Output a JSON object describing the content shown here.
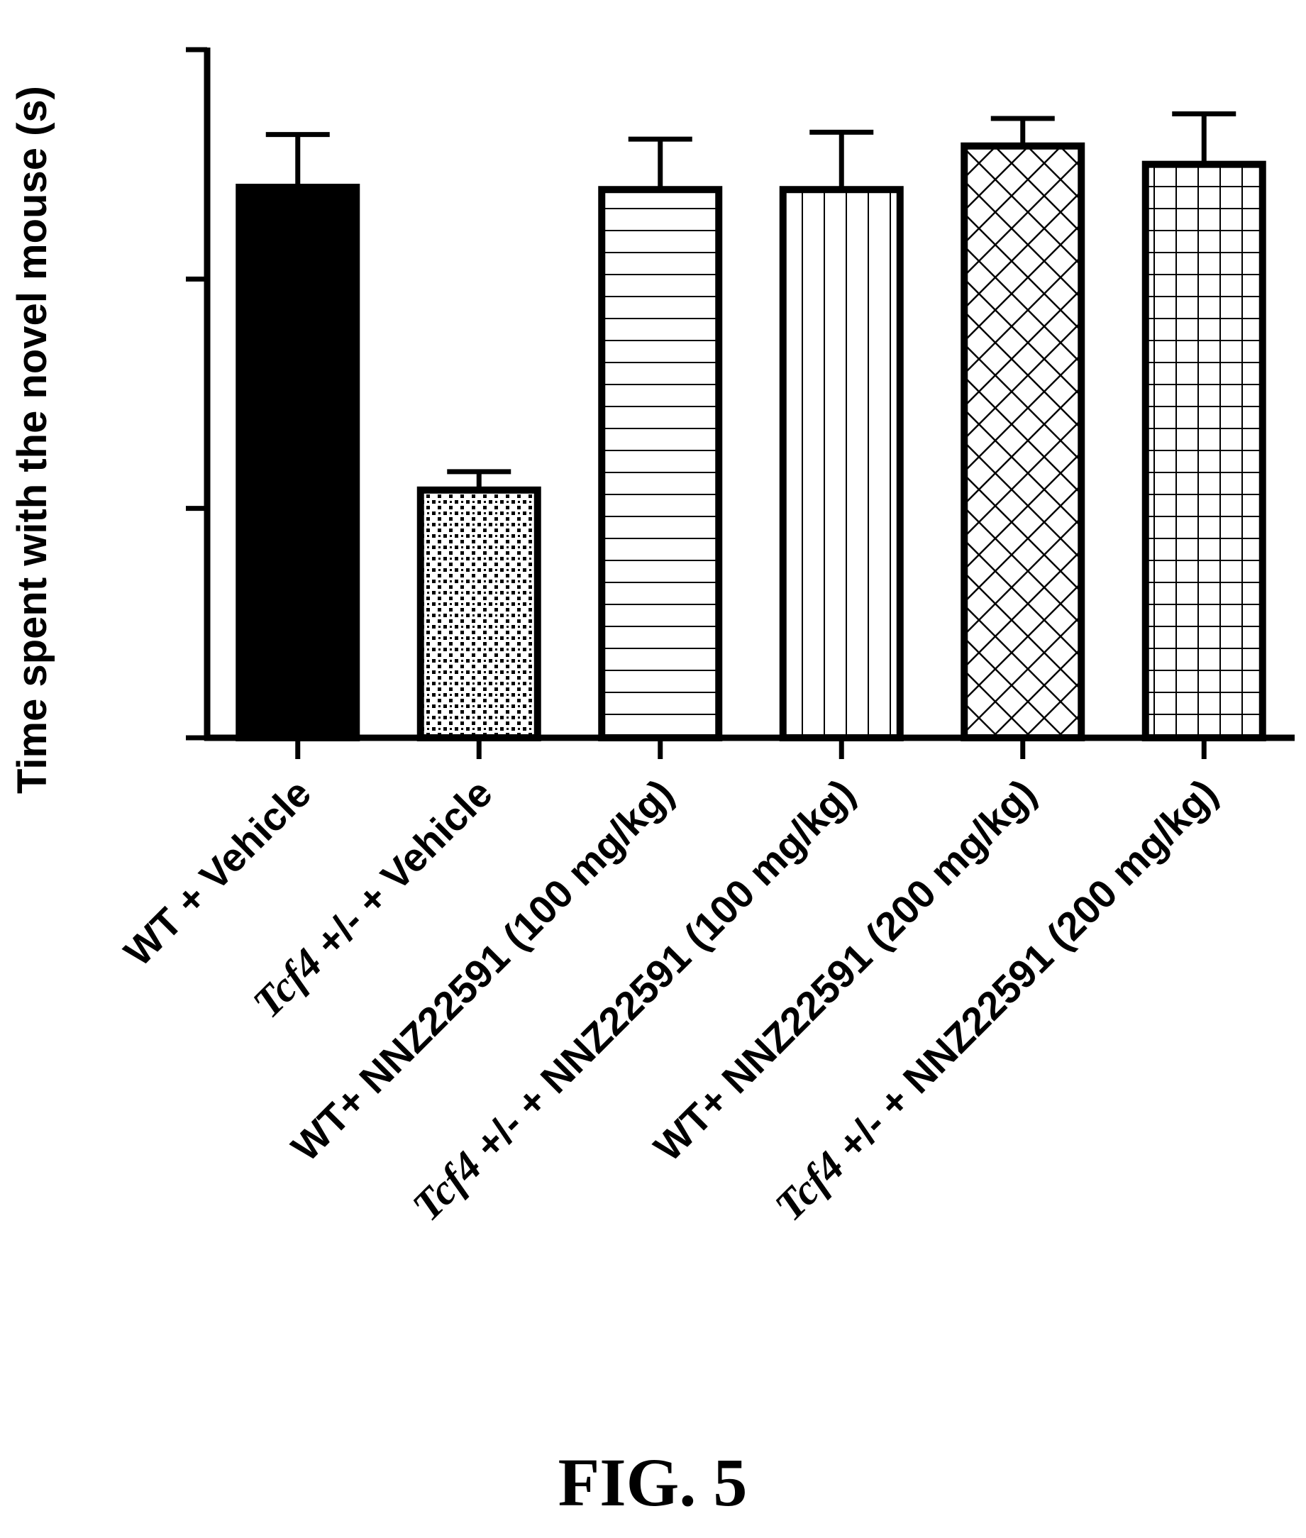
{
  "chart_data": {
    "type": "bar",
    "ylabel": "Time spent with the novel mouse (s)",
    "xlabel": "",
    "ylim": [
      0,
      3
    ],
    "yticks": [
      0,
      1,
      2,
      3
    ],
    "ytick_labels_shown": false,
    "grid": false,
    "legend": "none",
    "categories": [
      {
        "prefix_italic": "",
        "text": "WT + Vehicle"
      },
      {
        "prefix_italic": "Tcf4",
        "text": " +/- + Vehicle"
      },
      {
        "prefix_italic": "",
        "text": "WT+ NNZ22591 (100 mg/kg)"
      },
      {
        "prefix_italic": "Tcf4",
        "text": " +/- + NNZ22591 (100 mg/kg)"
      },
      {
        "prefix_italic": "",
        "text": "WT+ NNZ22591 (200 mg/kg)"
      },
      {
        "prefix_italic": "Tcf4",
        "text": " +/- + NNZ22591 (200 mg/kg)"
      }
    ],
    "values": [
      2.4,
      1.08,
      2.39,
      2.39,
      2.58,
      2.5
    ],
    "errors": [
      0.23,
      0.08,
      0.22,
      0.25,
      0.12,
      0.22
    ],
    "patterns": [
      "solid",
      "dots",
      "horizontal-lines",
      "vertical-lines",
      "crosshatch",
      "grid"
    ]
  },
  "figure_label": "FIG. 5"
}
